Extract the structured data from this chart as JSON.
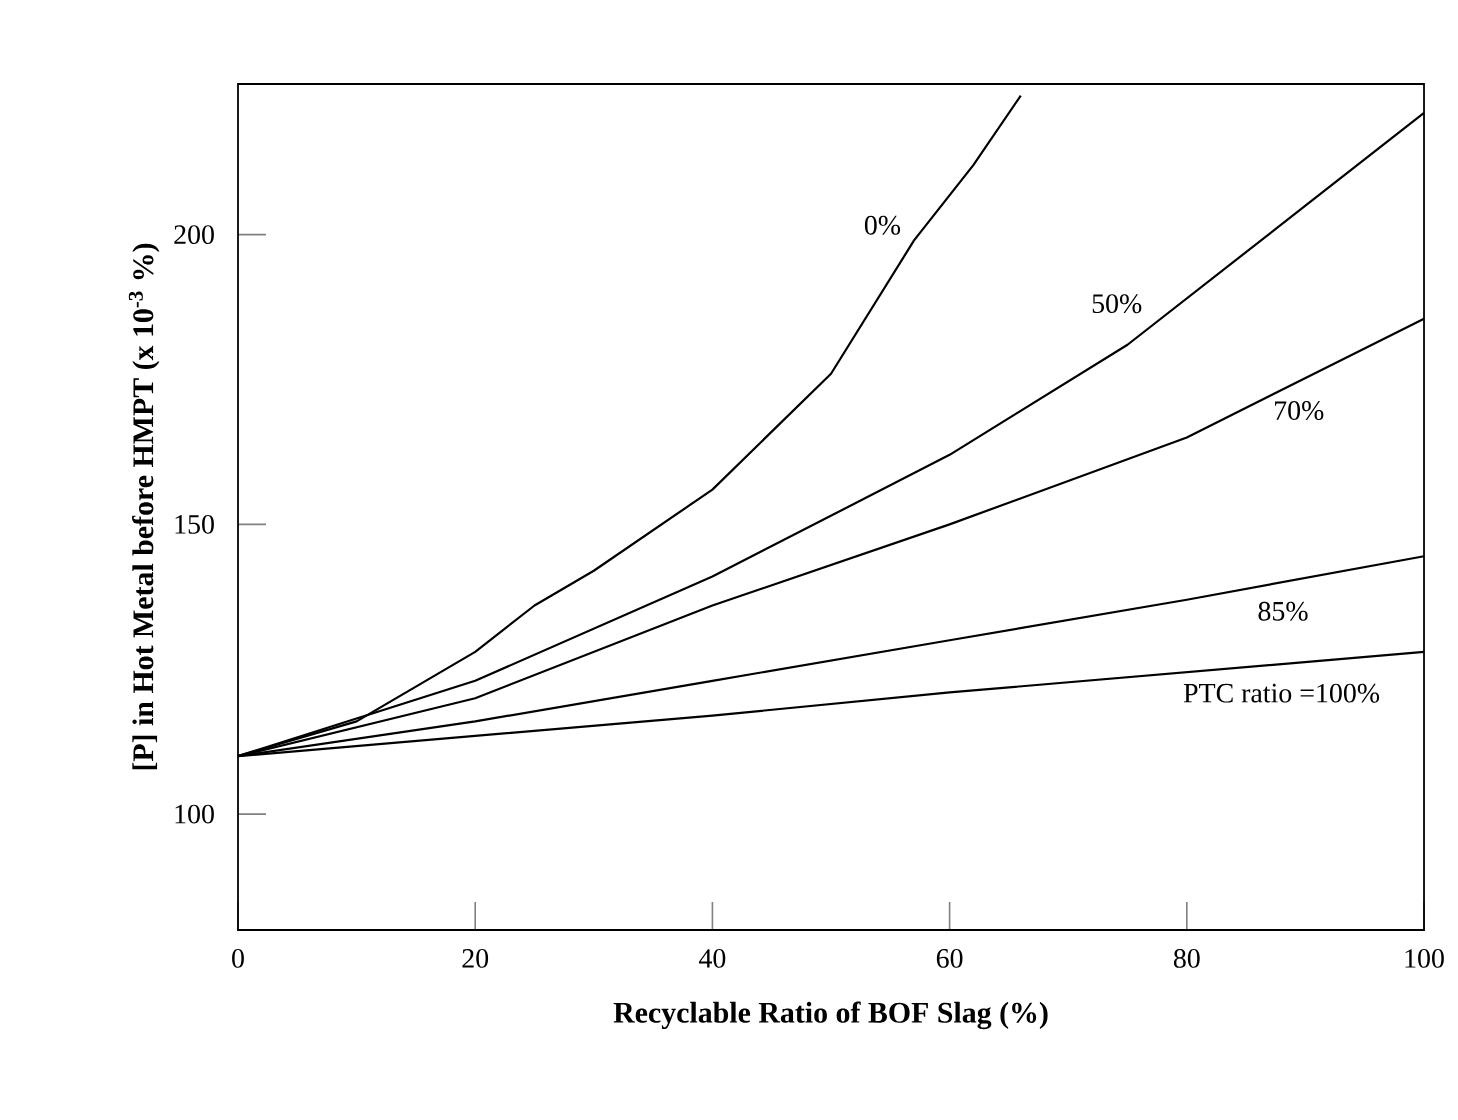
{
  "chart_data": {
    "type": "line",
    "xlabel": "Recyclable Ratio of BOF Slag (%)",
    "ylabel": "[P] in Hot Metal before HMPT (x 10$^{-3}$ %)",
    "xlim": [
      0,
      100
    ],
    "xticks": [
      0,
      20,
      40,
      60,
      80,
      100
    ],
    "ylim": [
      80,
      226
    ],
    "yticks": [
      100,
      150,
      200
    ],
    "series": [
      {
        "name": "0%",
        "color": "#000000",
        "x": [
          0,
          10,
          20,
          25,
          30,
          40,
          50,
          57,
          62,
          66
        ],
        "values": [
          110,
          116,
          128,
          136,
          142,
          156,
          176,
          199,
          212,
          224
        ]
      },
      {
        "name": "50%",
        "color": "#000000",
        "x": [
          0,
          20,
          40,
          60,
          75,
          90,
          100
        ],
        "values": [
          110,
          123,
          141,
          162,
          181,
          205,
          221
        ]
      },
      {
        "name": "70%",
        "color": "#000000",
        "x": [
          0,
          20,
          40,
          60,
          80,
          100
        ],
        "values": [
          110,
          120,
          136,
          150,
          165,
          185.5
        ]
      },
      {
        "name": "85%",
        "color": "#000000",
        "x": [
          0,
          20,
          40,
          60,
          80,
          100
        ],
        "values": [
          110,
          116,
          123,
          130,
          137,
          144.5
        ]
      },
      {
        "name": "PTC ratio =100%",
        "color": "#000000",
        "x": [
          0,
          20,
          40,
          60,
          80,
          100
        ],
        "values": [
          110,
          113.5,
          117,
          121,
          124.5,
          128
        ]
      }
    ]
  }
}
